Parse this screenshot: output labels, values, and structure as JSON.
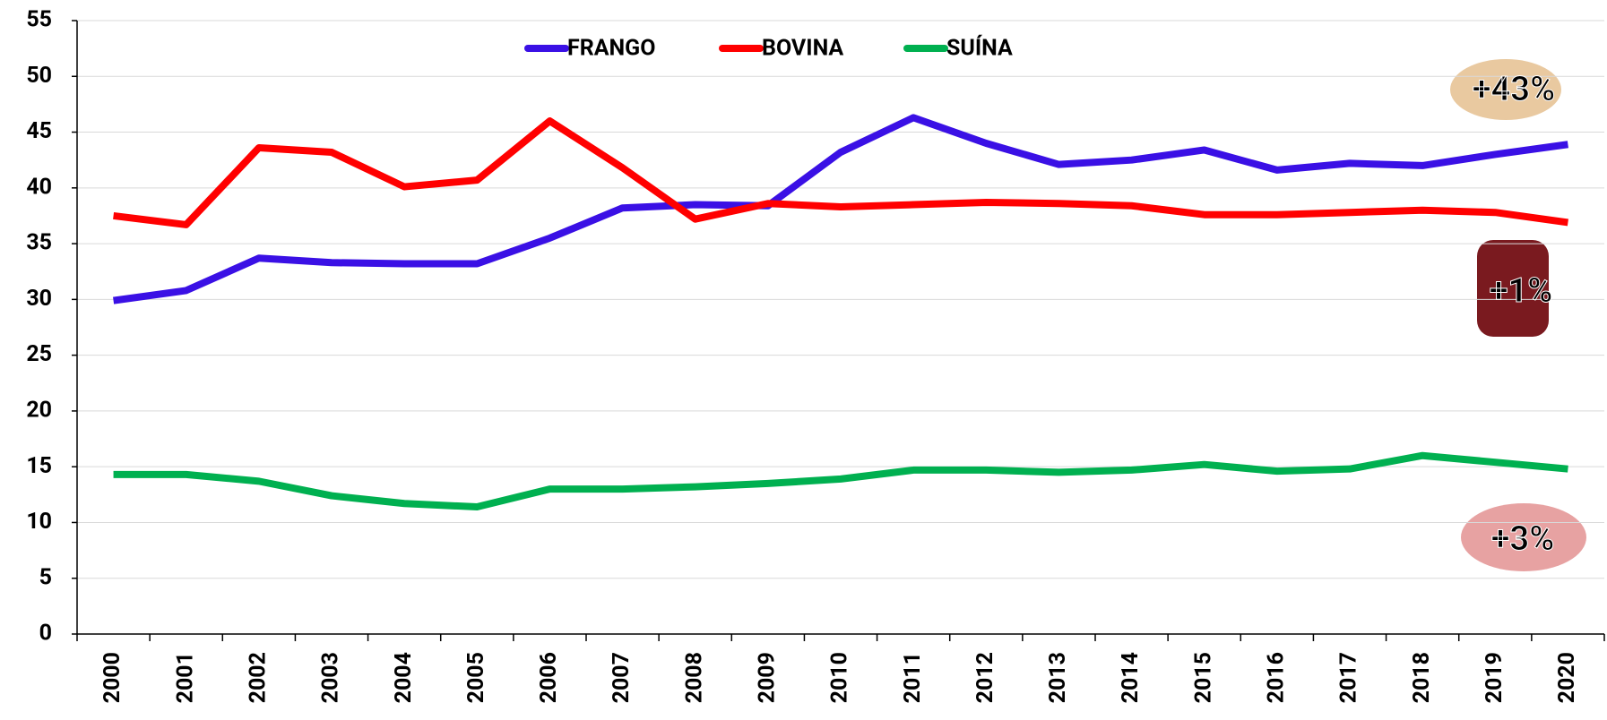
{
  "chart_data": {
    "type": "line",
    "categories": [
      "2000",
      "2001",
      "2002",
      "2003",
      "2004",
      "2005",
      "2006",
      "2007",
      "2008",
      "2009",
      "2010",
      "2011",
      "2012",
      "2013",
      "2014",
      "2015",
      "2016",
      "2017",
      "2018",
      "2019",
      "2020"
    ],
    "series": [
      {
        "name": "FRANGO",
        "color": "#3a10e5",
        "values": [
          29.9,
          30.8,
          33.7,
          33.3,
          33.2,
          33.2,
          35.5,
          38.2,
          38.5,
          38.4,
          43.2,
          46.3,
          44.0,
          42.1,
          42.5,
          43.4,
          41.6,
          42.2,
          42.0,
          43.0,
          43.9
        ]
      },
      {
        "name": "BOVINA",
        "color": "#ff0000",
        "values": [
          37.5,
          36.7,
          43.6,
          43.2,
          40.1,
          40.7,
          46.0,
          41.8,
          37.2,
          38.6,
          38.3,
          38.5,
          38.7,
          38.6,
          38.4,
          37.6,
          37.6,
          37.8,
          38.0,
          37.8,
          36.9
        ]
      },
      {
        "name": "SUÍNA",
        "color": "#00b050",
        "values": [
          14.3,
          14.3,
          13.7,
          12.4,
          11.7,
          11.4,
          13.0,
          13.0,
          13.2,
          13.5,
          13.9,
          14.7,
          14.7,
          14.5,
          14.7,
          15.2,
          14.6,
          14.8,
          16.0,
          15.4,
          14.8
        ]
      }
    ],
    "ylim": [
      0,
      55
    ],
    "yticks": [
      0,
      5,
      10,
      15,
      20,
      25,
      30,
      35,
      40,
      45,
      50,
      55
    ],
    "grid": true,
    "annotations": [
      "+43%",
      "+1%",
      "+3%"
    ]
  }
}
